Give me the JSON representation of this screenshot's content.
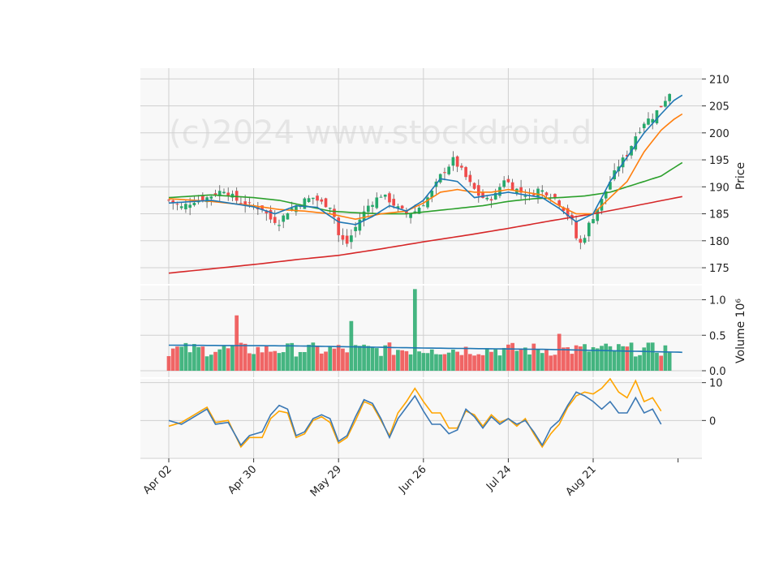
{
  "watermark": "(c)2024 www.stockdroid.d",
  "colors": {
    "up": "#26a96c",
    "down": "#ef4b4b",
    "ma_fast": "#1f77b4",
    "ma_mid": "#ff7f0e",
    "ma_slow": "#2ca02c",
    "ma_long": "#d62728",
    "vol_ma": "#1f77b4",
    "osc_blue": "#3b78b4",
    "osc_orange": "#ffa500",
    "panel_bg": "#f8f8f8",
    "grid": "#d0d0d0"
  },
  "chart_data": {
    "type": "candlestick",
    "x_tick_labels": [
      "Apr 02",
      "Apr 30",
      "May 29",
      "Jun 26",
      "Jul 24",
      "Aug 21"
    ],
    "x_tick_index": [
      0,
      20,
      40,
      60,
      80,
      100
    ],
    "n_bars": 119,
    "price_panel": {
      "ylabel": "Price",
      "ylim": [
        172,
        212
      ],
      "yticks": [
        175,
        180,
        185,
        190,
        195,
        200,
        205,
        210
      ],
      "anchors_close": [
        [
          0,
          187.5
        ],
        [
          3,
          186.2
        ],
        [
          6,
          187.5
        ],
        [
          9,
          188.0
        ],
        [
          13,
          189.5
        ],
        [
          16,
          187.5
        ],
        [
          19,
          186.5
        ],
        [
          22,
          186.0
        ],
        [
          24,
          184.0
        ],
        [
          26,
          183.5
        ],
        [
          28,
          185.5
        ],
        [
          30,
          186.5
        ],
        [
          32,
          187.5
        ],
        [
          34,
          188.0
        ],
        [
          36,
          187.0
        ],
        [
          38,
          186.5
        ],
        [
          39,
          184.5
        ],
        [
          40,
          181.0
        ],
        [
          41,
          180.0
        ],
        [
          42,
          179.5
        ],
        [
          43,
          181.0
        ],
        [
          45,
          184.0
        ],
        [
          47,
          186.5
        ],
        [
          50,
          188.5
        ],
        [
          52,
          187.5
        ],
        [
          54,
          186.0
        ],
        [
          56,
          185.0
        ],
        [
          58,
          185.5
        ],
        [
          60,
          187.0
        ],
        [
          62,
          189.0
        ],
        [
          64,
          192.0
        ],
        [
          66,
          194.0
        ],
        [
          67,
          195.0
        ],
        [
          69,
          193.0
        ],
        [
          71,
          190.5
        ],
        [
          73,
          188.5
        ],
        [
          75,
          187.5
        ],
        [
          77,
          188.5
        ],
        [
          79,
          191.5
        ],
        [
          81,
          190.0
        ],
        [
          83,
          189.0
        ],
        [
          85,
          188.5
        ],
        [
          87,
          189.5
        ],
        [
          89,
          189.0
        ],
        [
          91,
          188.0
        ],
        [
          93,
          186.0
        ],
        [
          95,
          183.5
        ],
        [
          96,
          180.5
        ],
        [
          97,
          179.5
        ],
        [
          98,
          181.0
        ],
        [
          99,
          183.0
        ],
        [
          100,
          184.5
        ],
        [
          102,
          187.5
        ],
        [
          104,
          191.0
        ],
        [
          106,
          194.0
        ],
        [
          108,
          196.0
        ],
        [
          110,
          199.5
        ],
        [
          112,
          202.0
        ],
        [
          114,
          203.0
        ],
        [
          116,
          205.0
        ],
        [
          118,
          207.5
        ],
        [
          119,
          209.0
        ],
        [
          120,
          208.5
        ],
        [
          121,
          206.5
        ]
      ],
      "ma_fast_anchors": [
        [
          0,
          187.0
        ],
        [
          10,
          187.5
        ],
        [
          20,
          186.3
        ],
        [
          25,
          185.0
        ],
        [
          30,
          186.5
        ],
        [
          35,
          186.2
        ],
        [
          40,
          183.5
        ],
        [
          44,
          183.0
        ],
        [
          48,
          184.5
        ],
        [
          52,
          186.5
        ],
        [
          56,
          185.5
        ],
        [
          60,
          187.5
        ],
        [
          64,
          191.5
        ],
        [
          68,
          191.0
        ],
        [
          72,
          188.0
        ],
        [
          76,
          188.5
        ],
        [
          80,
          189.0
        ],
        [
          84,
          188.5
        ],
        [
          88,
          188.0
        ],
        [
          92,
          186.0
        ],
        [
          96,
          183.5
        ],
        [
          100,
          185.0
        ],
        [
          104,
          191.0
        ],
        [
          108,
          195.5
        ],
        [
          112,
          200.0
        ],
        [
          116,
          203.5
        ],
        [
          119,
          206.0
        ],
        [
          121,
          207.0
        ]
      ],
      "ma_mid_anchors": [
        [
          0,
          187.8
        ],
        [
          10,
          187.3
        ],
        [
          20,
          186.5
        ],
        [
          26,
          185.8
        ],
        [
          32,
          185.5
        ],
        [
          38,
          185.0
        ],
        [
          44,
          184.0
        ],
        [
          50,
          185.0
        ],
        [
          56,
          185.5
        ],
        [
          60,
          187.0
        ],
        [
          64,
          189.0
        ],
        [
          68,
          189.5
        ],
        [
          72,
          189.0
        ],
        [
          76,
          189.0
        ],
        [
          80,
          189.5
        ],
        [
          84,
          189.0
        ],
        [
          88,
          188.5
        ],
        [
          92,
          186.5
        ],
        [
          96,
          185.0
        ],
        [
          100,
          185.0
        ],
        [
          104,
          188.0
        ],
        [
          108,
          191.0
        ],
        [
          112,
          196.5
        ],
        [
          116,
          200.5
        ],
        [
          119,
          202.5
        ],
        [
          121,
          203.5
        ]
      ],
      "ma_slow_anchors": [
        [
          0,
          188.0
        ],
        [
          10,
          188.5
        ],
        [
          20,
          188.0
        ],
        [
          26,
          187.5
        ],
        [
          32,
          186.5
        ],
        [
          38,
          185.5
        ],
        [
          44,
          185.2
        ],
        [
          50,
          185.0
        ],
        [
          56,
          185.0
        ],
        [
          62,
          185.5
        ],
        [
          68,
          186.0
        ],
        [
          74,
          186.5
        ],
        [
          80,
          187.3
        ],
        [
          86,
          187.8
        ],
        [
          92,
          188.0
        ],
        [
          98,
          188.3
        ],
        [
          104,
          189.0
        ],
        [
          108,
          190.0
        ],
        [
          112,
          191.0
        ],
        [
          116,
          192.0
        ],
        [
          119,
          193.5
        ],
        [
          121,
          194.5
        ]
      ],
      "ma_long_anchors": [
        [
          0,
          174.0
        ],
        [
          10,
          174.8
        ],
        [
          20,
          175.6
        ],
        [
          30,
          176.5
        ],
        [
          40,
          177.3
        ],
        [
          50,
          178.5
        ],
        [
          60,
          179.8
        ],
        [
          70,
          181.0
        ],
        [
          80,
          182.3
        ],
        [
          90,
          183.7
        ],
        [
          100,
          185.0
        ],
        [
          110,
          186.5
        ],
        [
          121,
          188.2
        ]
      ]
    },
    "volume_panel": {
      "ylabel": "Volume  10⁶",
      "ylim": [
        0,
        1.2
      ],
      "yticks": [
        0.0,
        0.5,
        1.0
      ],
      "spikes": [
        [
          16,
          0.78
        ],
        [
          43,
          0.7
        ],
        [
          58,
          1.15
        ],
        [
          62,
          0.3
        ],
        [
          92,
          0.52
        ]
      ],
      "base": 0.3,
      "ma_level": 0.34
    },
    "osc_panel": {
      "ylim": [
        -10,
        11
      ],
      "yticks": [
        0,
        10
      ],
      "blue_anchors": [
        [
          0,
          0.0
        ],
        [
          3,
          -1.0
        ],
        [
          6,
          1.0
        ],
        [
          9,
          3.0
        ],
        [
          11,
          -1.0
        ],
        [
          14,
          -0.5
        ],
        [
          17,
          -6.5
        ],
        [
          19,
          -4.0
        ],
        [
          22,
          -3.0
        ],
        [
          24,
          1.5
        ],
        [
          26,
          4.0
        ],
        [
          28,
          3.0
        ],
        [
          30,
          -4.0
        ],
        [
          32,
          -3.0
        ],
        [
          34,
          0.5
        ],
        [
          36,
          1.5
        ],
        [
          38,
          0.5
        ],
        [
          40,
          -5.5
        ],
        [
          42,
          -4.0
        ],
        [
          44,
          1.0
        ],
        [
          46,
          5.5
        ],
        [
          48,
          4.5
        ],
        [
          50,
          0.5
        ],
        [
          52,
          -4.5
        ],
        [
          54,
          0.5
        ],
        [
          56,
          3.5
        ],
        [
          58,
          6.5
        ],
        [
          60,
          2.5
        ],
        [
          62,
          -1.0
        ],
        [
          64,
          -1.0
        ],
        [
          66,
          -3.5
        ],
        [
          68,
          -2.5
        ],
        [
          70,
          3.0
        ],
        [
          72,
          1.0
        ],
        [
          74,
          -2.0
        ],
        [
          76,
          1.0
        ],
        [
          78,
          -1.0
        ],
        [
          80,
          0.5
        ],
        [
          82,
          -1.0
        ],
        [
          84,
          0.0
        ],
        [
          86,
          -3.0
        ],
        [
          88,
          -6.5
        ],
        [
          90,
          -2.0
        ],
        [
          92,
          0.0
        ],
        [
          94,
          4.0
        ],
        [
          96,
          7.5
        ],
        [
          98,
          6.5
        ],
        [
          100,
          5.0
        ],
        [
          102,
          3.0
        ],
        [
          104,
          5.0
        ],
        [
          106,
          2.0
        ],
        [
          108,
          2.0
        ],
        [
          110,
          6.0
        ],
        [
          112,
          2.0
        ],
        [
          114,
          3.0
        ],
        [
          116,
          -1.0
        ]
      ],
      "orange_anchors": [
        [
          0,
          -1.5
        ],
        [
          3,
          -0.5
        ],
        [
          6,
          1.5
        ],
        [
          9,
          3.5
        ],
        [
          11,
          -0.5
        ],
        [
          14,
          0.0
        ],
        [
          17,
          -7.0
        ],
        [
          19,
          -4.5
        ],
        [
          22,
          -4.5
        ],
        [
          24,
          0.5
        ],
        [
          26,
          2.5
        ],
        [
          28,
          2.0
        ],
        [
          30,
          -4.5
        ],
        [
          32,
          -3.5
        ],
        [
          34,
          0.0
        ],
        [
          36,
          1.0
        ],
        [
          38,
          -0.5
        ],
        [
          40,
          -6.0
        ],
        [
          42,
          -4.5
        ],
        [
          44,
          0.0
        ],
        [
          46,
          5.0
        ],
        [
          48,
          4.0
        ],
        [
          50,
          0.0
        ],
        [
          52,
          -4.0
        ],
        [
          54,
          2.0
        ],
        [
          56,
          5.0
        ],
        [
          58,
          8.5
        ],
        [
          60,
          5.0
        ],
        [
          62,
          2.0
        ],
        [
          64,
          2.0
        ],
        [
          66,
          -2.0
        ],
        [
          68,
          -2.0
        ],
        [
          70,
          2.5
        ],
        [
          72,
          1.5
        ],
        [
          74,
          -1.5
        ],
        [
          76,
          1.5
        ],
        [
          78,
          -0.5
        ],
        [
          80,
          0.5
        ],
        [
          82,
          -1.5
        ],
        [
          84,
          0.5
        ],
        [
          86,
          -3.5
        ],
        [
          88,
          -7.0
        ],
        [
          90,
          -3.5
        ],
        [
          92,
          -1.0
        ],
        [
          94,
          3.5
        ],
        [
          96,
          6.5
        ],
        [
          98,
          7.5
        ],
        [
          100,
          7.0
        ],
        [
          102,
          8.5
        ],
        [
          104,
          11.0
        ],
        [
          106,
          7.5
        ],
        [
          108,
          6.0
        ],
        [
          110,
          10.5
        ],
        [
          112,
          5.0
        ],
        [
          114,
          6.0
        ],
        [
          116,
          2.5
        ]
      ]
    }
  }
}
